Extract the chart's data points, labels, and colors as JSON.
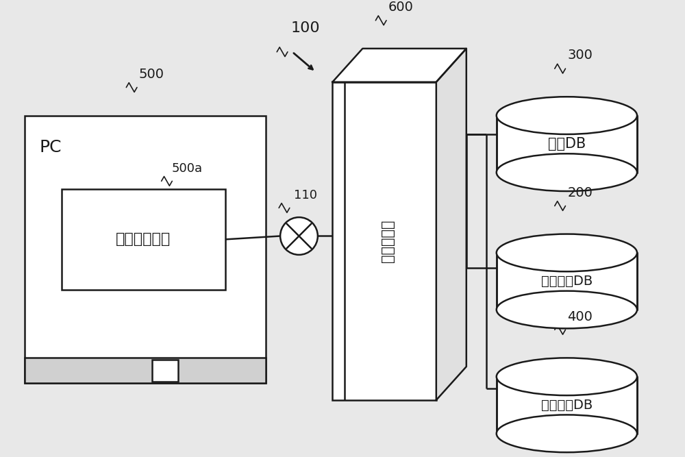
{
  "bg_color": "#e8e8e8",
  "line_color": "#1a1a1a",
  "label_100": "100",
  "label_500": "500",
  "label_500a": "500a",
  "label_110": "110",
  "label_600": "600",
  "label_300": "300",
  "label_200": "200",
  "label_400": "400",
  "text_PC": "PC",
  "text_browser": "互联网浏览器",
  "text_server": "网络服务器",
  "text_db300": "特权DB",
  "text_db200": "顾客信息DB",
  "text_db400": "诉求声明DB",
  "font_size_label": 14,
  "font_size_text": 16,
  "font_size_pc": 18,
  "font_size_server": 17
}
